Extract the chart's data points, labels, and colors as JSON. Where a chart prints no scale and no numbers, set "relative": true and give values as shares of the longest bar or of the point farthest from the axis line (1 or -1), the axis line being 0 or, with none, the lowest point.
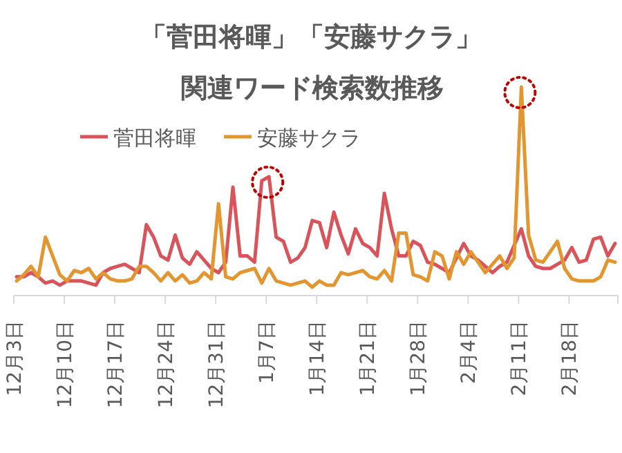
{
  "chart_data": {
    "type": "line",
    "title": "「菅田将暉」「安藤サクラ」",
    "subtitle": "関連ワード検索数推移",
    "relative": true,
    "legend": "top left",
    "categories": [
      "12月3日",
      null,
      null,
      null,
      null,
      null,
      null,
      "12月10日",
      null,
      null,
      null,
      null,
      null,
      null,
      "12月17日",
      null,
      null,
      null,
      null,
      null,
      null,
      "12月24日",
      null,
      null,
      null,
      null,
      null,
      null,
      "12月31日",
      null,
      null,
      null,
      null,
      null,
      null,
      "1月7日",
      null,
      null,
      null,
      null,
      null,
      null,
      "1月14日",
      null,
      null,
      null,
      null,
      null,
      null,
      "1月21日",
      null,
      null,
      null,
      null,
      null,
      null,
      "1月28日",
      null,
      null,
      null,
      null,
      null,
      null,
      "2月4日",
      null,
      null,
      null,
      null,
      null,
      null,
      "2月11日",
      null,
      null,
      null,
      null,
      null,
      null,
      "2月18日",
      null,
      null,
      null,
      null,
      null,
      null
    ],
    "series": [
      {
        "name": "菅田将暉",
        "color": "#d9545a",
        "values": [
          0.09,
          0.09,
          0.11,
          0.09,
          0.06,
          0.07,
          0.05,
          0.07,
          0.07,
          0.07,
          0.06,
          0.05,
          0.11,
          0.13,
          0.14,
          0.15,
          0.13,
          0.11,
          0.34,
          0.28,
          0.19,
          0.17,
          0.29,
          0.18,
          0.15,
          0.21,
          0.17,
          0.13,
          0.11,
          0.16,
          0.52,
          0.19,
          0.19,
          0.16,
          0.55,
          0.57,
          0.28,
          0.26,
          0.16,
          0.18,
          0.23,
          0.36,
          0.35,
          0.23,
          0.4,
          0.29,
          0.2,
          0.32,
          0.25,
          0.23,
          0.19,
          0.49,
          0.32,
          0.19,
          0.19,
          0.26,
          0.24,
          0.16,
          0.15,
          0.13,
          0.11,
          0.18,
          0.25,
          0.19,
          0.17,
          0.14,
          0.11,
          0.14,
          0.16,
          0.24,
          0.32,
          0.19,
          0.14,
          0.13,
          0.13,
          0.15,
          0.17,
          0.23,
          0.16,
          0.17,
          0.27,
          0.28,
          0.19,
          0.25
        ]
      },
      {
        "name": "安藤サクラ",
        "color": "#e3952f",
        "values": [
          0.07,
          0.1,
          0.14,
          0.09,
          0.28,
          0.19,
          0.1,
          0.07,
          0.12,
          0.11,
          0.13,
          0.08,
          0.11,
          0.08,
          0.07,
          0.07,
          0.08,
          0.14,
          0.14,
          0.11,
          0.07,
          0.11,
          0.07,
          0.1,
          0.06,
          0.07,
          0.11,
          0.08,
          0.44,
          0.09,
          0.08,
          0.11,
          0.12,
          0.13,
          0.06,
          0.13,
          0.07,
          0.06,
          0.05,
          0.06,
          0.07,
          0.04,
          0.07,
          0.05,
          0.05,
          0.11,
          0.1,
          0.11,
          0.12,
          0.09,
          0.08,
          0.12,
          0.07,
          0.3,
          0.3,
          0.1,
          0.09,
          0.07,
          0.21,
          0.19,
          0.08,
          0.21,
          0.15,
          0.21,
          0.16,
          0.11,
          0.15,
          0.19,
          0.13,
          0.18,
          1,
          0.29,
          0.17,
          0.16,
          0.21,
          0.26,
          0.13,
          0.08,
          0.07,
          0.07,
          0.07,
          0.09,
          0.17,
          0.16
        ]
      }
    ]
  }
}
